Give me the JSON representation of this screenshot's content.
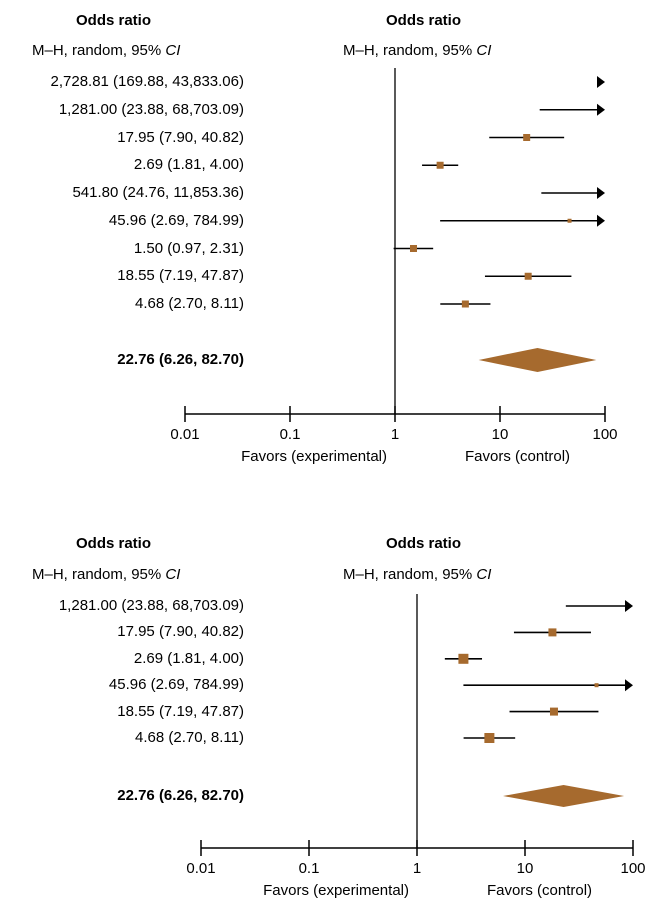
{
  "chart_data": [
    {
      "type": "forest",
      "header_left": "Odds ratio",
      "header_right": "Odds ratio",
      "sub_left_prefix": "M–H, random, 95% ",
      "sub_left_ci": "CI",
      "sub_right_prefix": "M–H, random, 95% ",
      "sub_right_ci": "CI",
      "x_scale": "log",
      "xlim": [
        0.01,
        100
      ],
      "ticks": [
        0.01,
        0.1,
        1,
        10,
        100
      ],
      "tick_labels": [
        "0.01",
        "0.1",
        "1",
        "10",
        "100"
      ],
      "favors_left": "Favors (experimental)",
      "favors_right": "Favors (control)",
      "marker_color": "#a66a2e",
      "studies": [
        {
          "label": "2,728.81 (169.88, 43,833.06)",
          "or": 2728.81,
          "lo": 169.88,
          "hi": 43833.06
        },
        {
          "label": "1,281.00 (23.88, 68,703.09)",
          "or": 1281.0,
          "lo": 23.88,
          "hi": 68703.09
        },
        {
          "label": "17.95 (7.90, 40.82)",
          "or": 17.95,
          "lo": 7.9,
          "hi": 40.82
        },
        {
          "label": "2.69 (1.81, 4.00)",
          "or": 2.69,
          "lo": 1.81,
          "hi": 4.0
        },
        {
          "label": "541.80 (24.76, 11,853.36)",
          "or": 541.8,
          "lo": 24.76,
          "hi": 11853.36
        },
        {
          "label": "45.96 (2.69, 784.99)",
          "or": 45.96,
          "lo": 2.69,
          "hi": 784.99
        },
        {
          "label": "1.50 (0.97, 2.31)",
          "or": 1.5,
          "lo": 0.97,
          "hi": 2.31
        },
        {
          "label": "18.55 (7.19, 47.87)",
          "or": 18.55,
          "lo": 7.19,
          "hi": 47.87
        },
        {
          "label": "4.68 (2.70, 8.11)",
          "or": 4.68,
          "lo": 2.7,
          "hi": 8.11
        }
      ],
      "pooled": {
        "label": "22.76 (6.26, 82.70)",
        "or": 22.76,
        "lo": 6.26,
        "hi": 82.7
      }
    },
    {
      "type": "forest",
      "header_left": "Odds ratio",
      "header_right": "Odds ratio",
      "sub_left_prefix": "M–H, random, 95% ",
      "sub_left_ci": "CI",
      "sub_right_prefix": "M–H, random, 95% ",
      "sub_right_ci": "CI",
      "x_scale": "log",
      "xlim": [
        0.01,
        100
      ],
      "ticks": [
        0.01,
        0.1,
        1,
        10,
        100
      ],
      "tick_labels": [
        "0.01",
        "0.1",
        "1",
        "10",
        "100"
      ],
      "favors_left": "Favors (experimental)",
      "favors_right": "Favors (control)",
      "marker_color": "#a66a2e",
      "studies": [
        {
          "label": "1,281.00 (23.88, 68,703.09)",
          "or": 1281.0,
          "lo": 23.88,
          "hi": 68703.09
        },
        {
          "label": "17.95 (7.90, 40.82)",
          "or": 17.95,
          "lo": 7.9,
          "hi": 40.82
        },
        {
          "label": "2.69 (1.81, 4.00)",
          "or": 2.69,
          "lo": 1.81,
          "hi": 4.0
        },
        {
          "label": "45.96 (2.69, 784.99)",
          "or": 45.96,
          "lo": 2.69,
          "hi": 784.99
        },
        {
          "label": "18.55 (7.19, 47.87)",
          "or": 18.55,
          "lo": 7.19,
          "hi": 47.87
        },
        {
          "label": "4.68 (2.70, 8.11)",
          "or": 4.68,
          "lo": 2.7,
          "hi": 8.11
        }
      ],
      "pooled": {
        "label": "22.76 (6.26, 82.70)",
        "or": 22.76,
        "lo": 6.26,
        "hi": 82.7
      }
    }
  ]
}
